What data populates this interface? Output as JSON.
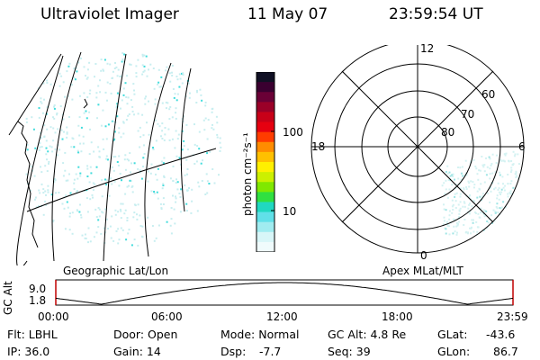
{
  "header": {
    "instrument": "Ultraviolet Imager",
    "date": "11 May 07",
    "time": "23:59:54 UT"
  },
  "colorbar": {
    "unit_label": "photon cm⁻²s⁻¹",
    "ticks": [
      "100",
      "10"
    ],
    "colors": [
      "#101024",
      "#3a0030",
      "#6a0036",
      "#9a0028",
      "#c80018",
      "#e60010",
      "#ff3c00",
      "#ff8c00",
      "#ffc000",
      "#fff000",
      "#ccf000",
      "#80e800",
      "#30e040",
      "#20d8c0",
      "#60e0e8",
      "#a0ecf0",
      "#d8f6f8",
      "#f0fbfc"
    ]
  },
  "geo_panel": {
    "label": "Geographic Lat/Lon"
  },
  "polar_panel": {
    "label": "Apex MLat/MLT",
    "mlt_labels": {
      "top": "12",
      "left": "18",
      "right": "6",
      "bottom": "0"
    },
    "lat_labels": [
      "60",
      "70",
      "80"
    ]
  },
  "altitude_plot": {
    "axis_title": "GC Alt",
    "y_ticks": [
      "9.0",
      "1.8"
    ],
    "x_ticks": [
      "00:00",
      "06:00",
      "12:00",
      "18:00",
      "23:59"
    ],
    "ylim": [
      1.8,
      9.0
    ]
  },
  "info": {
    "flt": "Flt: LBHL",
    "ip": "IP: 36.0",
    "door": "Door: Open",
    "gain": "Gain: 14",
    "mode": "Mode: Normal",
    "dsp_label": "Dsp:",
    "dsp_value": "-7.7",
    "gcalt": "GC Alt: 4.8 Re",
    "seq": "Seq: 39",
    "glat_label": "GLat:",
    "glat_value": "-43.6",
    "glon_label": "GLon:",
    "glon_value": "86.7"
  }
}
